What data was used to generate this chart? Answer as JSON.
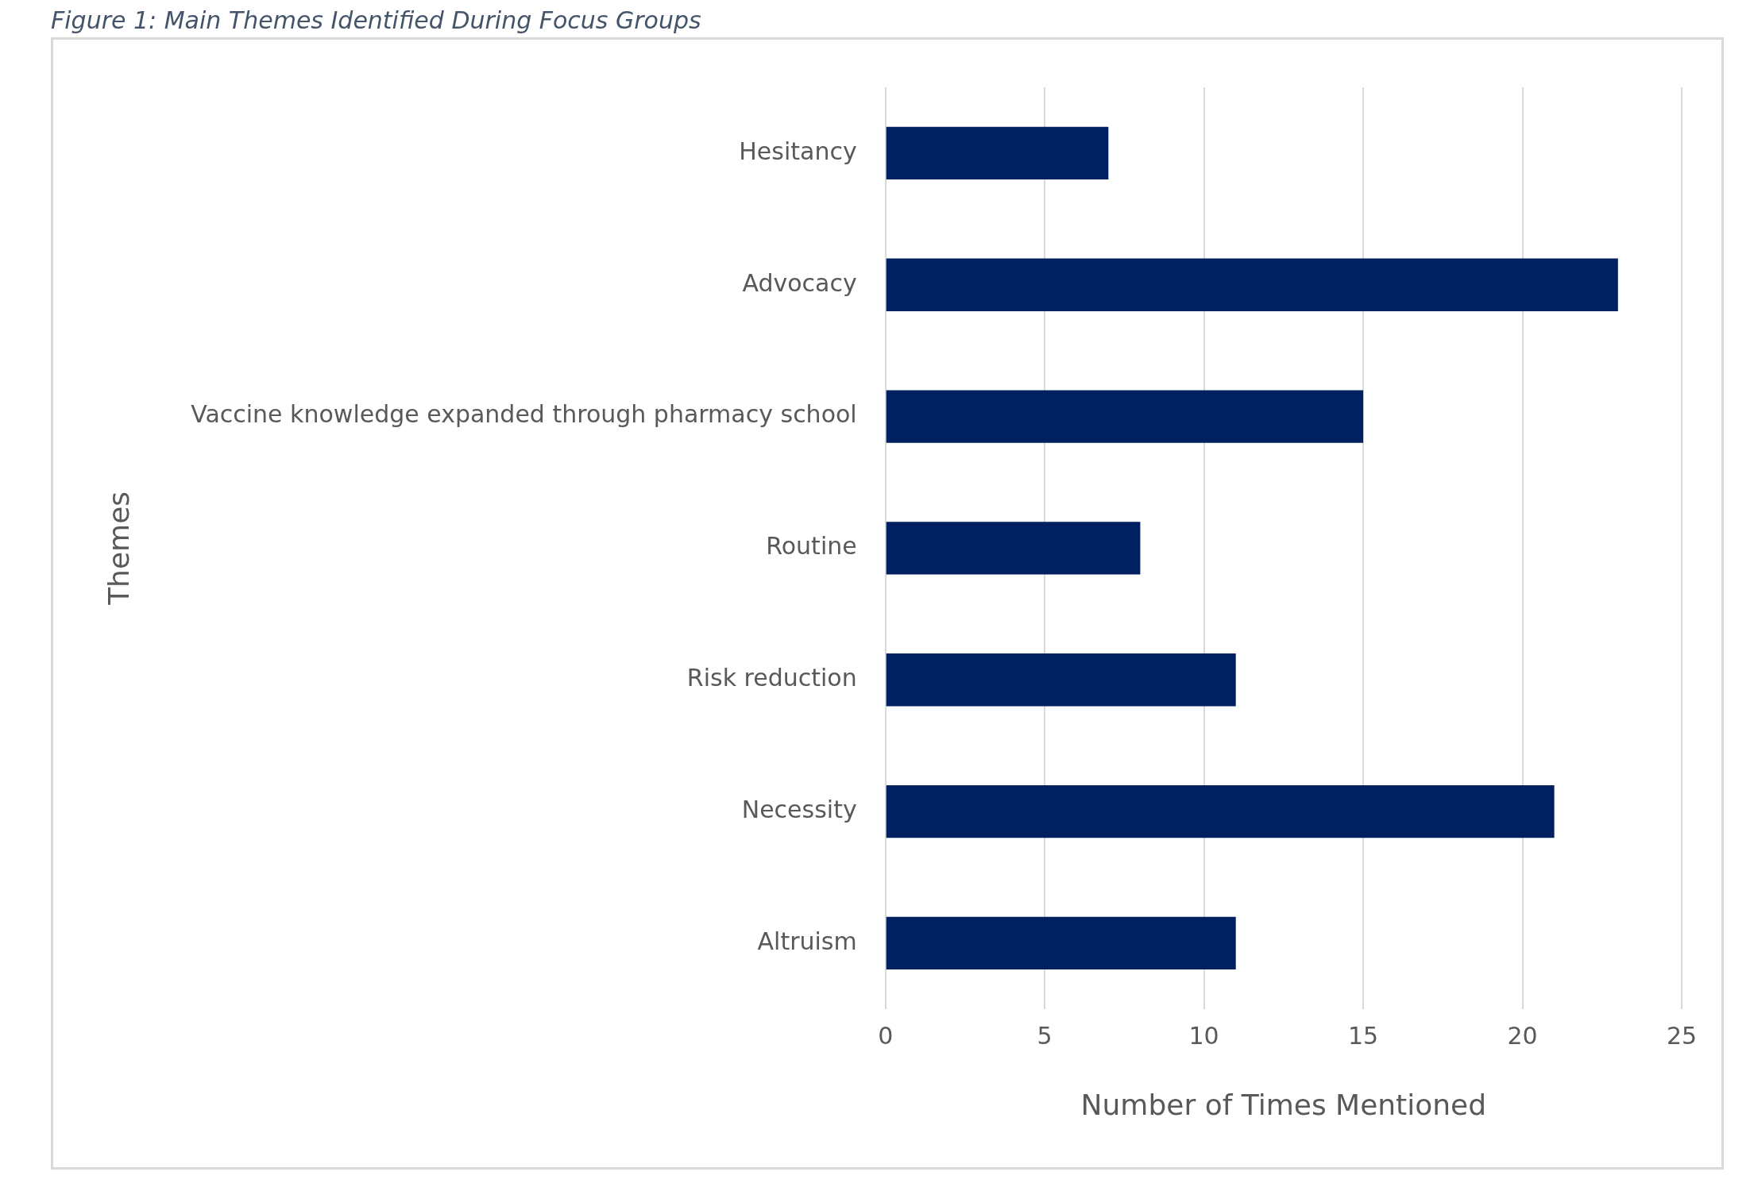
{
  "chart_data": {
    "type": "bar",
    "orientation": "horizontal",
    "title": "Figure 1: Main Themes Identified During Focus Groups",
    "xlabel": "Number of Times Mentioned",
    "ylabel": "Themes",
    "categories": [
      "Hesitancy",
      "Advocacy",
      "Vaccine knowledge expanded through pharmacy school",
      "Routine",
      "Risk reduction",
      "Necessity",
      "Altruism"
    ],
    "values": [
      7,
      23,
      15,
      8,
      11,
      21,
      11
    ],
    "color": "#002060",
    "xlim": [
      0,
      25
    ],
    "xticks": [
      0,
      5,
      10,
      15,
      20,
      25
    ],
    "grid": "x",
    "legend": false
  }
}
